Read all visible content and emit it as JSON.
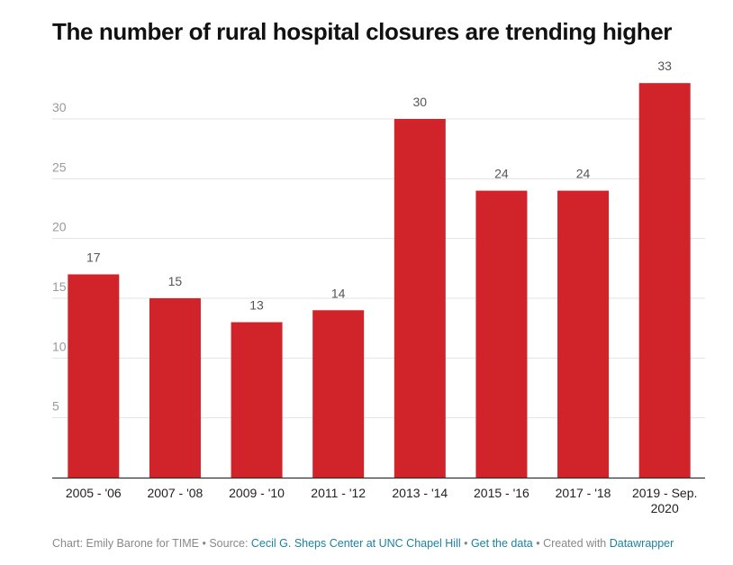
{
  "chart_data": {
    "type": "bar",
    "title": "The number of rural hospital closures are trending higher",
    "categories": [
      "2005 - '06",
      "2007 - '08",
      "2009 - '10",
      "2011 - '12",
      "2013 - '14",
      "2015 - '16",
      "2017 - '18",
      "2019 - Sep.\n2020"
    ],
    "values": [
      17,
      15,
      13,
      14,
      30,
      24,
      24,
      33
    ],
    "yticks": [
      5,
      10,
      15,
      20,
      25,
      30
    ],
    "ylim": [
      0,
      35
    ],
    "xlabel": "",
    "ylabel": "",
    "grid": true,
    "bar_color": "#d0232a"
  },
  "footer": {
    "chart_credit": "Chart: Emily Barone for TIME",
    "sep1": " • Source: ",
    "source_link": "Cecil G. Sheps Center at UNC Chapel Hill",
    "sep2": " • ",
    "data_link": "Get the data",
    "sep3": " • Created with ",
    "tool_link": "Datawrapper"
  }
}
